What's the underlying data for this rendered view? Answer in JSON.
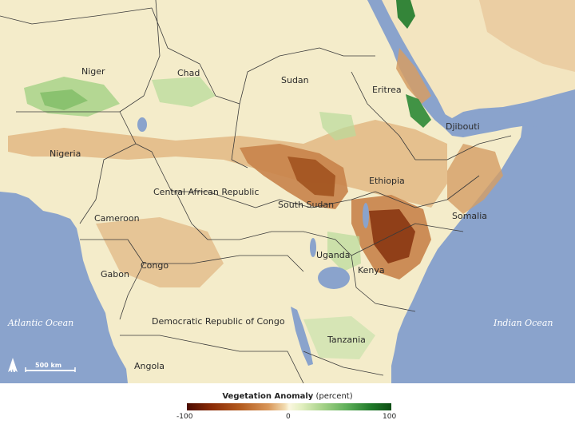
{
  "map": {
    "countries": [
      {
        "id": "niger",
        "label": "Niger"
      },
      {
        "id": "chad",
        "label": "Chad"
      },
      {
        "id": "sudan",
        "label": "Sudan"
      },
      {
        "id": "eritrea",
        "label": "Eritrea"
      },
      {
        "id": "djibouti",
        "label": "Djibouti"
      },
      {
        "id": "nigeria",
        "label": "Nigeria"
      },
      {
        "id": "ethiopia",
        "label": "Ethiopia"
      },
      {
        "id": "car",
        "label": "Central African Republic"
      },
      {
        "id": "south-sudan",
        "label": "South Sudan"
      },
      {
        "id": "cameroon",
        "label": "Cameroon"
      },
      {
        "id": "somalia",
        "label": "Somalia"
      },
      {
        "id": "uganda",
        "label": "Uganda"
      },
      {
        "id": "congo",
        "label": "Congo"
      },
      {
        "id": "kenya",
        "label": "Kenya"
      },
      {
        "id": "gabon",
        "label": "Gabon"
      },
      {
        "id": "drc",
        "label": "Democratic Republic of Congo"
      },
      {
        "id": "tanzania",
        "label": "Tanzania"
      },
      {
        "id": "angola",
        "label": "Angola"
      }
    ],
    "oceans": {
      "atlantic": "Atlantic Ocean",
      "indian": "Indian Ocean"
    },
    "scale_bar": "500 km",
    "north_arrow": "N",
    "colors": {
      "ocean": "#8aa3cc",
      "land_neutral": "#f6f1d0",
      "drought_dark": "#7a2a08",
      "drought_mid": "#c8834a",
      "green_mid": "#7fbd66",
      "green_dark": "#1f7a2a"
    }
  },
  "legend": {
    "title": "Vegetation Anomaly",
    "unit": "(percent)",
    "ticks": [
      "-100",
      "0",
      "100"
    ],
    "range": [
      -100,
      100
    ]
  }
}
